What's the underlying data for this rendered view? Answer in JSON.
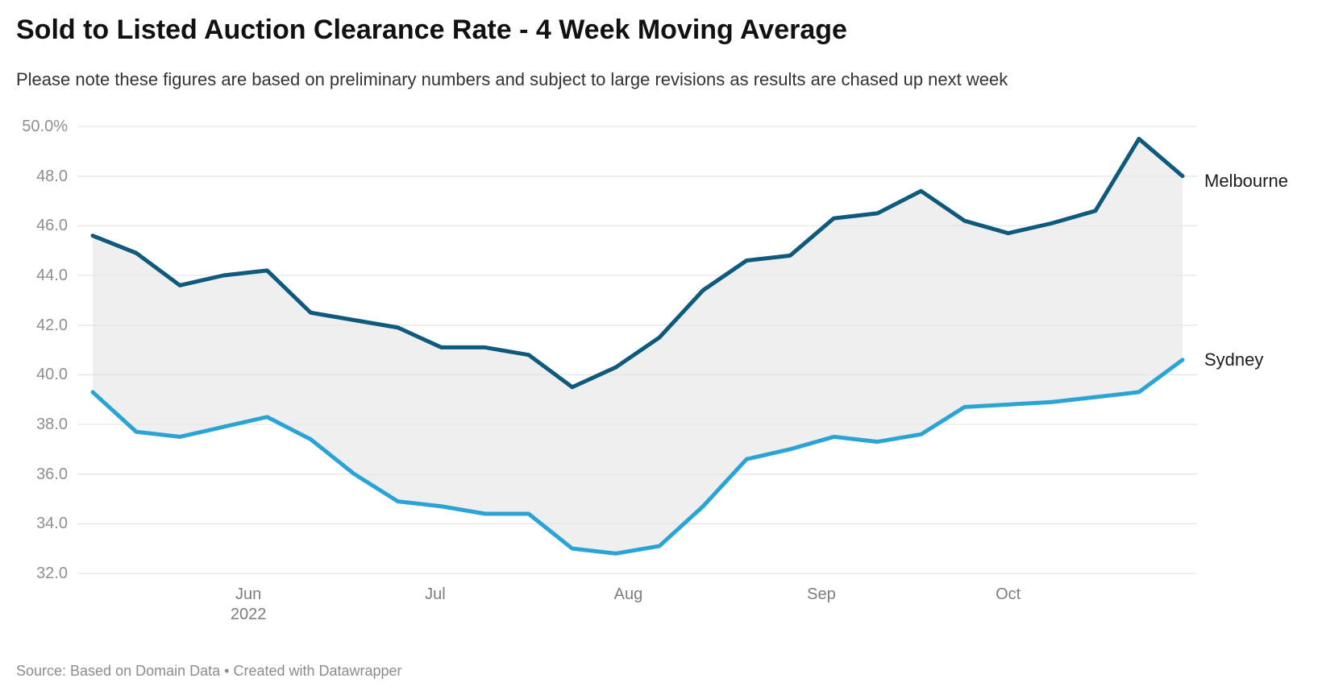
{
  "header": {
    "title": "Sold to Listed Auction Clearance Rate - 4 Week Moving Average",
    "subtitle": "Please note these figures are based on preliminary numbers and subject to large revisions as results are chased up next week"
  },
  "footer": {
    "text": "Source: Based on Domain Data • Created with Datawrapper"
  },
  "colors": {
    "melbourne_line": "#0e5a7d",
    "sydney_line": "#2aa3d6",
    "band_fill": "#efefef",
    "gridline": "#e6e6e6",
    "axis_text": "#8f8f8f"
  },
  "chart_data": {
    "type": "line",
    "title": "Sold to Listed Auction Clearance Rate - 4 Week Moving Average",
    "x": [
      "2022-05-07",
      "2022-05-14",
      "2022-05-21",
      "2022-05-28",
      "2022-06-04",
      "2022-06-11",
      "2022-06-18",
      "2022-06-25",
      "2022-07-02",
      "2022-07-09",
      "2022-07-16",
      "2022-07-23",
      "2022-07-30",
      "2022-08-06",
      "2022-08-13",
      "2022-08-20",
      "2022-08-27",
      "2022-09-03",
      "2022-09-10",
      "2022-09-17",
      "2022-09-24",
      "2022-10-01",
      "2022-10-08",
      "2022-10-15",
      "2022-10-22",
      "2022-10-29"
    ],
    "series": [
      {
        "name": "Melbourne",
        "color": "#0e5a7d",
        "values": [
          45.6,
          44.9,
          43.6,
          44.0,
          44.2,
          42.5,
          42.2,
          41.9,
          41.1,
          41.1,
          40.8,
          39.5,
          40.3,
          41.5,
          43.4,
          44.6,
          44.8,
          46.3,
          46.5,
          47.4,
          46.2,
          45.7,
          46.1,
          46.6,
          49.5,
          48.0
        ]
      },
      {
        "name": "Sydney",
        "color": "#2aa3d6",
        "values": [
          39.3,
          37.7,
          37.5,
          37.9,
          38.3,
          37.4,
          36.0,
          34.9,
          34.7,
          34.4,
          34.4,
          33.0,
          32.8,
          33.1,
          34.7,
          36.6,
          37.0,
          37.5,
          37.3,
          37.6,
          38.7,
          38.8,
          38.9,
          39.1,
          39.3,
          40.6
        ]
      }
    ],
    "band_between_series": true,
    "band_color": "#efefef",
    "ylim": [
      32.0,
      50.0
    ],
    "y_ticks": [
      {
        "value": 50.0,
        "label": "50.0%"
      },
      {
        "value": 48.0,
        "label": "48.0"
      },
      {
        "value": 46.0,
        "label": "46.0"
      },
      {
        "value": 44.0,
        "label": "44.0"
      },
      {
        "value": 42.0,
        "label": "42.0"
      },
      {
        "value": 40.0,
        "label": "40.0"
      },
      {
        "value": 38.0,
        "label": "38.0"
      },
      {
        "value": 36.0,
        "label": "36.0"
      },
      {
        "value": 34.0,
        "label": "34.0"
      },
      {
        "value": 32.0,
        "label": "32.0"
      }
    ],
    "x_ticks": [
      {
        "label": "Jun",
        "sub": "2022",
        "date": "2022-06-01"
      },
      {
        "label": "Jul",
        "date": "2022-07-01"
      },
      {
        "label": "Aug",
        "date": "2022-08-01"
      },
      {
        "label": "Sep",
        "date": "2022-09-01"
      },
      {
        "label": "Oct",
        "date": "2022-10-01"
      }
    ],
    "grid": "horizontal",
    "legend_position": "direct-labels-right",
    "xlabel": "",
    "ylabel": ""
  }
}
